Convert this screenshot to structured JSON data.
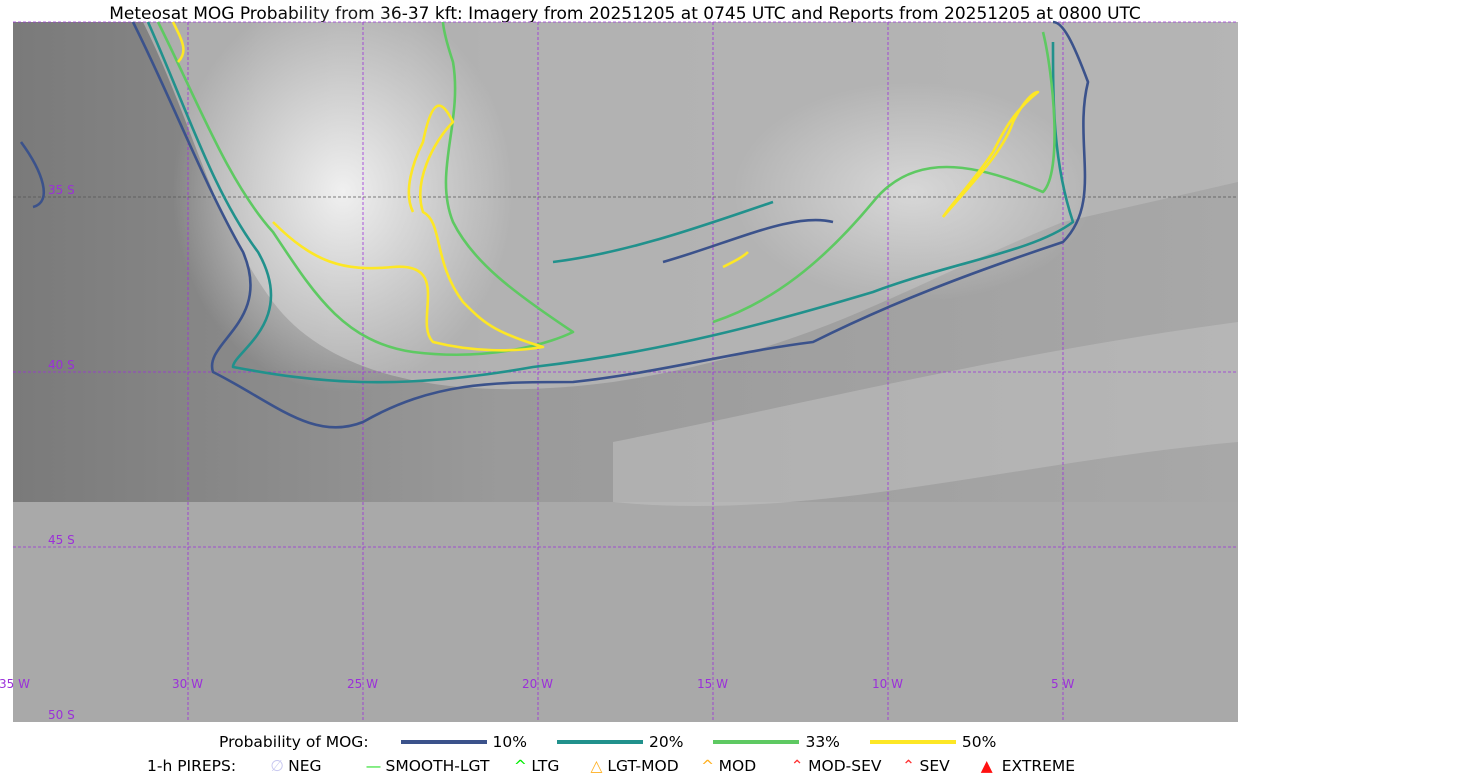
{
  "title": "Meteosat MOG Probability from 36-37 kft: Imagery from 20251205 at 0745 UTC and Reports from 20251205 at 0800 UTC",
  "map": {
    "lon_labels": [
      "35 W",
      "30 W",
      "25 W",
      "20 W",
      "15 W",
      "10 W",
      "5 W"
    ],
    "lat_labels": [
      "35 S",
      "40 S",
      "45 S",
      "50 S"
    ],
    "grid_color": "#9b30d9"
  },
  "legend": {
    "prob_label": "Probability of MOG:",
    "levels": [
      {
        "label": "10%",
        "color": "#3b528b"
      },
      {
        "label": "20%",
        "color": "#21918c"
      },
      {
        "label": "33%",
        "color": "#5ec962"
      },
      {
        "label": "50%",
        "color": "#fde725"
      }
    ],
    "pirep_label": "1-h PIREPS:",
    "pireps": [
      {
        "label": "NEG",
        "icon": "neg-icon",
        "color": "#c8c8f0"
      },
      {
        "label": "SMOOTH-LGT",
        "icon": "line-icon",
        "color": "#22dd22"
      },
      {
        "label": "LTG",
        "icon": "caret-icon",
        "color": "#00ee00"
      },
      {
        "label": "LGT-MOD",
        "icon": "triangle-open-icon",
        "color": "#ffb020"
      },
      {
        "label": "MOD",
        "icon": "caret-icon",
        "color": "#ffb020"
      },
      {
        "label": "MOD-SEV",
        "icon": "double-caret-icon",
        "color": "#ff3030"
      },
      {
        "label": "SEV",
        "icon": "double-caret-icon",
        "color": "#ff3030"
      },
      {
        "label": "EXTREME",
        "icon": "triangle-filled-icon",
        "color": "#ff1010"
      }
    ]
  }
}
